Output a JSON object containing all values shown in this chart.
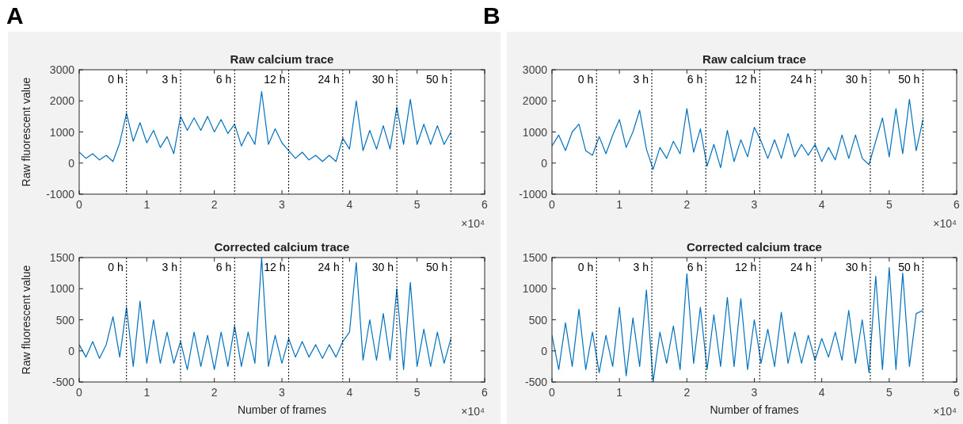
{
  "chart_data": [
    {
      "type": "line",
      "title": "Raw calcium trace",
      "ylabel": "Raw fluorescent value",
      "annotations": [
        "A",
        "×10⁴"
      ],
      "x": [
        0,
        0.1,
        0.2,
        0.3,
        0.4,
        0.5,
        0.6,
        0.7,
        0.8,
        0.9,
        1,
        1.1,
        1.2,
        1.3,
        1.4,
        1.5,
        1.6,
        1.7,
        1.8,
        1.9,
        2,
        2.1,
        2.2,
        2.3,
        2.4,
        2.5,
        2.6,
        2.7,
        2.8,
        2.9,
        3,
        3.1,
        3.2,
        3.3,
        3.4,
        3.5,
        3.6,
        3.7,
        3.8,
        3.9,
        4,
        4.1,
        4.2,
        4.3,
        4.4,
        4.5,
        4.6,
        4.7,
        4.8,
        4.9,
        5,
        5.1,
        5.2,
        5.3,
        5.4,
        5.5
      ],
      "series": [
        {
          "color": "#0072bd",
          "values": [
            350,
            150,
            300,
            100,
            250,
            50,
            650,
            1600,
            700,
            1300,
            650,
            1050,
            500,
            850,
            300,
            1500,
            1050,
            1450,
            1050,
            1500,
            1000,
            1400,
            950,
            1250,
            550,
            1000,
            600,
            2300,
            600,
            1100,
            650,
            400,
            150,
            350,
            100,
            250,
            50,
            250,
            50,
            800,
            450,
            2000,
            400,
            1050,
            450,
            1200,
            450,
            1800,
            600,
            2050,
            600,
            1250,
            600,
            1200,
            600,
            1000
          ]
        }
      ],
      "xlim": [
        0,
        6
      ],
      "xticks": [
        0,
        1,
        2,
        3,
        4,
        5,
        6
      ],
      "ylim": [
        -1000,
        3000
      ],
      "yticks": [
        -1000,
        0,
        1000,
        2000,
        3000
      ],
      "ref_lines": [
        {
          "axis": "x",
          "value": 0.7,
          "label": "0 h",
          "line_style": "dotted",
          "color": "#000000"
        },
        {
          "axis": "x",
          "value": 1.5,
          "label": "3 h",
          "line_style": "dotted",
          "color": "#000000"
        },
        {
          "axis": "x",
          "value": 2.3,
          "label": "6 h",
          "line_style": "dotted",
          "color": "#000000"
        },
        {
          "axis": "x",
          "value": 3.1,
          "label": "12 h",
          "line_style": "dotted",
          "color": "#000000"
        },
        {
          "axis": "x",
          "value": 3.9,
          "label": "24 h",
          "line_style": "dotted",
          "color": "#000000"
        },
        {
          "axis": "x",
          "value": 4.7,
          "label": "30 h",
          "line_style": "dotted",
          "color": "#000000"
        },
        {
          "axis": "x",
          "value": 5.5,
          "label": "50 h",
          "line_style": "dotted",
          "color": "#000000"
        }
      ]
    },
    {
      "type": "line",
      "title": "Corrected calcium trace",
      "ylabel": "Raw fluorescent value",
      "xlabel": "Number of frames",
      "annotations": [
        "×10⁴"
      ],
      "x": [
        0,
        0.1,
        0.2,
        0.3,
        0.4,
        0.5,
        0.6,
        0.7,
        0.8,
        0.9,
        1,
        1.1,
        1.2,
        1.3,
        1.4,
        1.5,
        1.6,
        1.7,
        1.8,
        1.9,
        2,
        2.1,
        2.2,
        2.3,
        2.4,
        2.5,
        2.6,
        2.7,
        2.8,
        2.9,
        3,
        3.1,
        3.2,
        3.3,
        3.4,
        3.5,
        3.6,
        3.7,
        3.8,
        3.9,
        4,
        4.1,
        4.2,
        4.3,
        4.4,
        4.5,
        4.6,
        4.7,
        4.8,
        4.9,
        5,
        5.1,
        5.2,
        5.3,
        5.4,
        5.5
      ],
      "series": [
        {
          "color": "#0072bd",
          "values": [
            100,
            -100,
            150,
            -120,
            100,
            550,
            -100,
            700,
            -250,
            800,
            -200,
            500,
            -200,
            300,
            -200,
            150,
            -300,
            300,
            -250,
            250,
            -300,
            300,
            -250,
            400,
            -250,
            300,
            -200,
            1500,
            -250,
            250,
            -200,
            200,
            -100,
            150,
            -100,
            100,
            -120,
            100,
            -100,
            150,
            300,
            1420,
            -150,
            500,
            -150,
            600,
            -150,
            1000,
            -300,
            1100,
            -250,
            350,
            -250,
            300,
            -200,
            200
          ]
        }
      ],
      "xlim": [
        0,
        6
      ],
      "xticks": [
        0,
        1,
        2,
        3,
        4,
        5,
        6
      ],
      "ylim": [
        -500,
        1500
      ],
      "yticks": [
        -500,
        0,
        500,
        1000,
        1500
      ],
      "ref_lines": [
        {
          "axis": "x",
          "value": 0.7,
          "label": "0 h",
          "line_style": "dotted",
          "color": "#000000"
        },
        {
          "axis": "x",
          "value": 1.5,
          "label": "3 h",
          "line_style": "dotted",
          "color": "#000000"
        },
        {
          "axis": "x",
          "value": 2.3,
          "label": "6 h",
          "line_style": "dotted",
          "color": "#000000"
        },
        {
          "axis": "x",
          "value": 3.1,
          "label": "12 h",
          "line_style": "dotted",
          "color": "#000000"
        },
        {
          "axis": "x",
          "value": 3.9,
          "label": "24 h",
          "line_style": "dotted",
          "color": "#000000"
        },
        {
          "axis": "x",
          "value": 4.7,
          "label": "30 h",
          "line_style": "dotted",
          "color": "#000000"
        },
        {
          "axis": "x",
          "value": 5.5,
          "label": "50 h",
          "line_style": "dotted",
          "color": "#000000"
        }
      ]
    },
    {
      "type": "line",
      "title": "Raw calcium trace",
      "annotations": [
        "B",
        "×10⁴"
      ],
      "x": [
        0,
        0.1,
        0.2,
        0.3,
        0.4,
        0.5,
        0.6,
        0.7,
        0.8,
        0.9,
        1,
        1.1,
        1.2,
        1.3,
        1.4,
        1.5,
        1.6,
        1.7,
        1.8,
        1.9,
        2,
        2.1,
        2.2,
        2.3,
        2.4,
        2.5,
        2.6,
        2.7,
        2.8,
        2.9,
        3,
        3.1,
        3.2,
        3.3,
        3.4,
        3.5,
        3.6,
        3.7,
        3.8,
        3.9,
        4,
        4.1,
        4.2,
        4.3,
        4.4,
        4.5,
        4.6,
        4.7,
        4.8,
        4.9,
        5,
        5.1,
        5.2,
        5.3,
        5.4,
        5.5
      ],
      "series": [
        {
          "color": "#0072bd",
          "values": [
            550,
            900,
            400,
            1000,
            1250,
            400,
            250,
            850,
            300,
            900,
            1400,
            500,
            1000,
            1700,
            450,
            -200,
            500,
            150,
            700,
            300,
            1750,
            350,
            1100,
            -100,
            600,
            -150,
            1050,
            50,
            750,
            200,
            1150,
            700,
            150,
            750,
            150,
            950,
            200,
            600,
            250,
            600,
            50,
            500,
            100,
            900,
            150,
            900,
            150,
            -50,
            700,
            1450,
            200,
            1750,
            300,
            2050,
            400,
            1400
          ]
        }
      ],
      "xlim": [
        0,
        6
      ],
      "xticks": [
        0,
        1,
        2,
        3,
        4,
        5,
        6
      ],
      "ylim": [
        -1000,
        3000
      ],
      "yticks": [
        -1000,
        0,
        1000,
        2000,
        3000
      ],
      "ref_lines": [
        {
          "axis": "x",
          "value": 0.66,
          "label": "0 h",
          "line_style": "dotted",
          "color": "#000000"
        },
        {
          "axis": "x",
          "value": 1.48,
          "label": "3 h",
          "line_style": "dotted",
          "color": "#000000"
        },
        {
          "axis": "x",
          "value": 2.28,
          "label": "6 h",
          "line_style": "dotted",
          "color": "#000000"
        },
        {
          "axis": "x",
          "value": 3.08,
          "label": "12 h",
          "line_style": "dotted",
          "color": "#000000"
        },
        {
          "axis": "x",
          "value": 3.9,
          "label": "24 h",
          "line_style": "dotted",
          "color": "#000000"
        },
        {
          "axis": "x",
          "value": 4.72,
          "label": "30 h",
          "line_style": "dotted",
          "color": "#000000"
        },
        {
          "axis": "x",
          "value": 5.5,
          "label": "50 h",
          "line_style": "dotted",
          "color": "#000000"
        }
      ]
    },
    {
      "type": "line",
      "title": "Corrected calcium trace",
      "xlabel": "Number of frames",
      "annotations": [
        "×10⁴"
      ],
      "x": [
        0,
        0.1,
        0.2,
        0.3,
        0.4,
        0.5,
        0.6,
        0.7,
        0.8,
        0.9,
        1,
        1.1,
        1.2,
        1.3,
        1.4,
        1.5,
        1.6,
        1.7,
        1.8,
        1.9,
        2,
        2.1,
        2.2,
        2.3,
        2.4,
        2.5,
        2.6,
        2.7,
        2.8,
        2.9,
        3,
        3.1,
        3.2,
        3.3,
        3.4,
        3.5,
        3.6,
        3.7,
        3.8,
        3.9,
        4,
        4.1,
        4.2,
        4.3,
        4.4,
        4.5,
        4.6,
        4.7,
        4.8,
        4.9,
        5,
        5.1,
        5.2,
        5.3,
        5.4,
        5.5
      ],
      "series": [
        {
          "color": "#0072bd",
          "values": [
            250,
            -300,
            450,
            -250,
            670,
            -300,
            300,
            -350,
            250,
            -250,
            700,
            -400,
            530,
            -250,
            980,
            -500,
            300,
            -200,
            400,
            -300,
            1240,
            -200,
            700,
            -300,
            580,
            -250,
            860,
            -250,
            840,
            -300,
            500,
            -200,
            350,
            -250,
            620,
            -200,
            300,
            -200,
            250,
            -150,
            200,
            -100,
            300,
            -150,
            650,
            -200,
            500,
            -350,
            1200,
            -300,
            1340,
            -300,
            1250,
            -250,
            600,
            650
          ]
        }
      ],
      "xlim": [
        0,
        6
      ],
      "xticks": [
        0,
        1,
        2,
        3,
        4,
        5,
        6
      ],
      "ylim": [
        -500,
        1500
      ],
      "yticks": [
        -500,
        0,
        500,
        1000,
        1500
      ],
      "ref_lines": [
        {
          "axis": "x",
          "value": 0.66,
          "label": "0 h",
          "line_style": "dotted",
          "color": "#000000"
        },
        {
          "axis": "x",
          "value": 1.48,
          "label": "3 h",
          "line_style": "dotted",
          "color": "#000000"
        },
        {
          "axis": "x",
          "value": 2.28,
          "label": "6 h",
          "line_style": "dotted",
          "color": "#000000"
        },
        {
          "axis": "x",
          "value": 3.08,
          "label": "12 h",
          "line_style": "dotted",
          "color": "#000000"
        },
        {
          "axis": "x",
          "value": 3.9,
          "label": "24 h",
          "line_style": "dotted",
          "color": "#000000"
        },
        {
          "axis": "x",
          "value": 4.72,
          "label": "30 h",
          "line_style": "dotted",
          "color": "#000000"
        },
        {
          "axis": "x",
          "value": 5.5,
          "label": "50 h",
          "line_style": "dotted",
          "color": "#000000"
        }
      ]
    }
  ]
}
